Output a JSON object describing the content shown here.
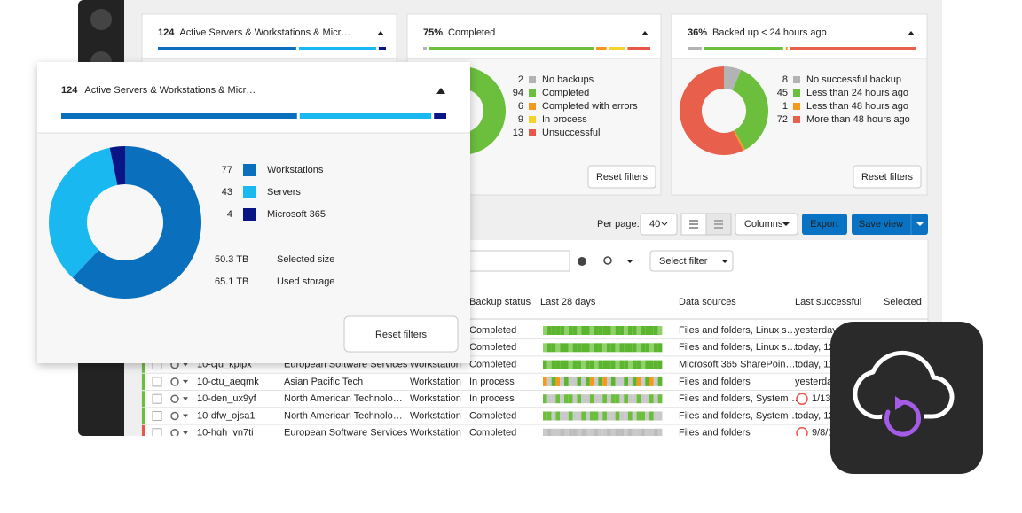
{
  "cards": [
    {
      "count": "124",
      "title": "Active Servers & Workstations & Micr…",
      "items": [
        {
          "value": 77,
          "label": "Workstations",
          "color": "#0a6fbd"
        },
        {
          "value": 43,
          "label": "Servers",
          "color": "#1ab8f0"
        },
        {
          "value": 4,
          "label": "Microsoft 365",
          "color": "#0a1585"
        }
      ],
      "sizes": [
        {
          "value": "50.3 TB",
          "label": "Selected size"
        },
        {
          "value": "65.1 TB",
          "label": "Used storage"
        }
      ],
      "reset": "Reset filters"
    },
    {
      "count": "75%",
      "title": "Completed",
      "items": [
        {
          "value": 2,
          "label": "No backups",
          "color": "#b3b3b3"
        },
        {
          "value": 94,
          "label": "Completed",
          "color": "#6cbf3c"
        },
        {
          "value": 6,
          "label": "Completed with errors",
          "color": "#f39a1e"
        },
        {
          "value": 9,
          "label": "In process",
          "color": "#f6d32a"
        },
        {
          "value": 13,
          "label": "Unsuccessful",
          "color": "#e8584a"
        }
      ],
      "reset": "Reset filters"
    },
    {
      "count": "36%",
      "title": "Backed up < 24 hours ago",
      "items": [
        {
          "value": 8,
          "label": "No successful backup",
          "color": "#b3b3b3"
        },
        {
          "value": 45,
          "label": "Less than 24 hours ago",
          "color": "#6cbf3c"
        },
        {
          "value": 1,
          "label": "Less than 48 hours ago",
          "color": "#f39a1e"
        },
        {
          "value": 72,
          "label": "More than 48 hours ago",
          "color": "#e8604c"
        }
      ],
      "reset": "Reset filters"
    }
  ],
  "toolbar": {
    "per_page_label": "Per page:",
    "per_page": "40",
    "columns": "Columns",
    "export": "Export",
    "save_view": "Save view",
    "select_filter": "Select filter"
  },
  "table": {
    "headers": [
      "Backup status",
      "Last 28 days",
      "Data sources",
      "Last successful",
      "Selected"
    ],
    "rows": [
      {
        "status": "Completed",
        "sources": "Files and folders, Linux s…",
        "last": "yesterday,"
      },
      {
        "status": "Completed",
        "sources": "Files and folders, Linux s…",
        "last": "today, 12"
      },
      {
        "name": "10-cju_kpipx",
        "company": "European Software Services",
        "kind": "Workstation",
        "status": "Completed",
        "sources": "Microsoft 365 SharePoin…",
        "last": "today, 11"
      },
      {
        "name": "10-ctu_aeqmk",
        "company": "Asian Pacific Tech",
        "kind": "Workstation",
        "status": "In process",
        "sources": "Files and folders",
        "last": "yesterday"
      },
      {
        "name": "10-den_ux9yf",
        "company": "North American Technolo…",
        "kind": "Workstation",
        "status": "In process",
        "sources": "Files and folders, System…",
        "last": "1/13,"
      },
      {
        "name": "10-dfw_ojsa1",
        "company": "North American Technolo…",
        "kind": "Workstation",
        "status": "Completed",
        "sources": "Files and folders, System…",
        "last": "today, 12"
      },
      {
        "name": "10-hgh_yn7ti",
        "company": "European Software Services",
        "kind": "Workstation",
        "status": "Completed",
        "sources": "Files and folders",
        "last": "9/8/1"
      }
    ]
  }
}
